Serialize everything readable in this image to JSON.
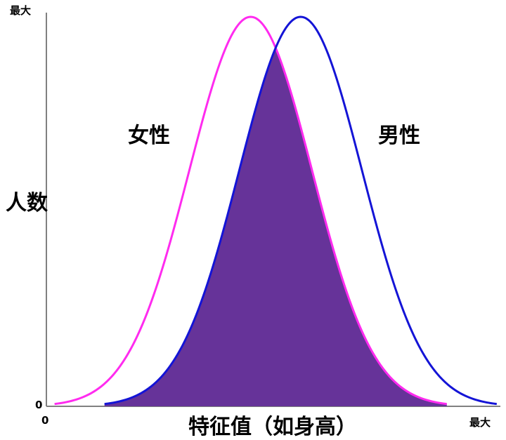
{
  "chart_data": {
    "type": "line",
    "title": "",
    "xlabel": "特征值（如身高）",
    "ylabel": "人数",
    "x_ticks": [
      "0",
      "最大"
    ],
    "y_ticks": [
      "0",
      "最大"
    ],
    "xlim": [
      0,
      100
    ],
    "ylim": [
      0,
      1
    ],
    "grid": false,
    "legend": "none",
    "overlap_fill_color": "#663399",
    "series": [
      {
        "name": "女性",
        "distribution": "normal",
        "mean": 45,
        "sd": 13.5,
        "peak": 1.0,
        "color": "#ff2bef"
      },
      {
        "name": "男性",
        "distribution": "normal",
        "mean": 56,
        "sd": 13.5,
        "peak": 1.0,
        "color": "#1414d6"
      }
    ]
  }
}
